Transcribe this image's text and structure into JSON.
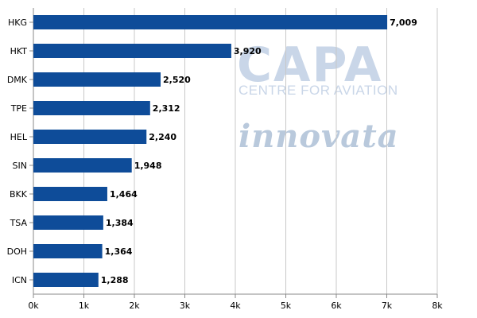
{
  "watermark": {
    "capa": "CAPA",
    "capa_sub": "CENTRE FOR AVIATION",
    "innovata": "innovata"
  },
  "colors": {
    "bar": "#0e4c99",
    "grid": "#c8c8c8",
    "axis": "#888888",
    "text": "#000000"
  },
  "chart_data": {
    "type": "bar",
    "orientation": "horizontal",
    "categories": [
      "HKG",
      "HKT",
      "DMK",
      "TPE",
      "HEL",
      "SIN",
      "BKK",
      "TSA",
      "DOH",
      "ICN"
    ],
    "values": [
      7009,
      3920,
      2520,
      2312,
      2240,
      1948,
      1464,
      1384,
      1364,
      1288
    ],
    "value_labels": [
      "7,009",
      "3,920",
      "2,520",
      "2,312",
      "2,240",
      "1,948",
      "1,464",
      "1,384",
      "1,364",
      "1,288"
    ],
    "xlim": [
      0,
      8000
    ],
    "xticks": [
      0,
      1000,
      2000,
      3000,
      4000,
      5000,
      6000,
      7000,
      8000
    ],
    "xtick_labels": [
      "0k",
      "1k",
      "2k",
      "3k",
      "4k",
      "5k",
      "6k",
      "7k",
      "8k"
    ],
    "grid": true,
    "title": "",
    "xlabel": "",
    "ylabel": ""
  }
}
